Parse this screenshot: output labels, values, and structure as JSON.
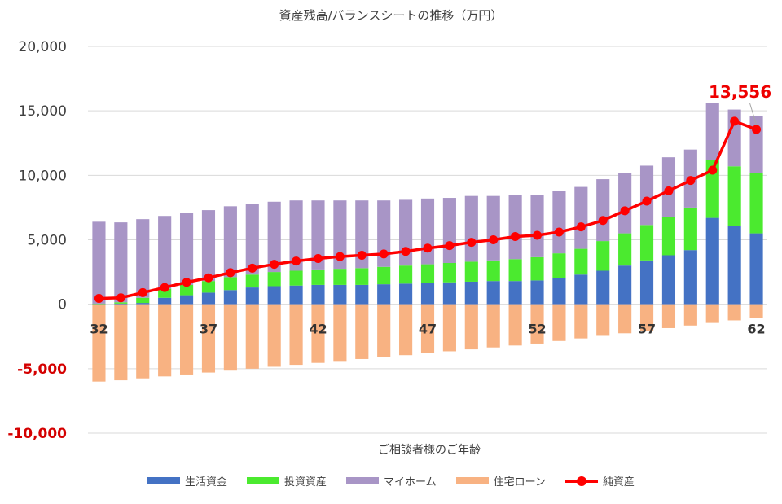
{
  "chart_data": {
    "type": "bar",
    "stacked": true,
    "title": "資産残高/バランスシートの推移（万円）",
    "xlabel": "ご相談者様のご年齢",
    "ylabel": "",
    "ylim": [
      -10000,
      20000
    ],
    "y_ticks": [
      "20,000",
      "15,000",
      "10,000",
      "5,000",
      "0",
      "-5,000",
      "-10,000"
    ],
    "y_tick_values": [
      20000,
      15000,
      10000,
      5000,
      0,
      -5000,
      -10000
    ],
    "categories": [
      32,
      33,
      34,
      35,
      36,
      37,
      38,
      39,
      40,
      41,
      42,
      43,
      44,
      45,
      46,
      47,
      48,
      49,
      50,
      51,
      52,
      53,
      54,
      55,
      56,
      57,
      58,
      59,
      60,
      61,
      62
    ],
    "x_tick_labels": [
      {
        "age": 32,
        "label": "32"
      },
      {
        "age": 37,
        "label": "37"
      },
      {
        "age": 42,
        "label": "42"
      },
      {
        "age": 47,
        "label": "47"
      },
      {
        "age": 52,
        "label": "52"
      },
      {
        "age": 57,
        "label": "57"
      },
      {
        "age": 62,
        "label": "62"
      }
    ],
    "series": [
      {
        "name": "生活資金",
        "color": "#4472c4",
        "kind": "bar",
        "values": [
          50,
          50,
          100,
          500,
          700,
          900,
          1100,
          1300,
          1400,
          1450,
          1500,
          1500,
          1500,
          1550,
          1600,
          1650,
          1700,
          1750,
          1800,
          1800,
          1850,
          2050,
          2300,
          2600,
          3000,
          3400,
          3800,
          4200,
          6700,
          6100,
          5500
        ]
      },
      {
        "name": "投資資産",
        "color": "#4bea2f",
        "kind": "bar",
        "values": [
          0,
          100,
          400,
          700,
          800,
          900,
          1000,
          1000,
          1100,
          1150,
          1200,
          1250,
          1300,
          1350,
          1400,
          1450,
          1500,
          1550,
          1600,
          1700,
          1800,
          1900,
          2000,
          2300,
          2500,
          2750,
          3000,
          3300,
          4500,
          4600,
          4700
        ]
      },
      {
        "name": "マイホーム",
        "color": "#a895c6",
        "kind": "bar",
        "values": [
          6350,
          6200,
          6100,
          5650,
          5600,
          5500,
          5500,
          5500,
          5450,
          5450,
          5350,
          5300,
          5250,
          5150,
          5100,
          5100,
          5050,
          5100,
          5000,
          4950,
          4850,
          4850,
          4800,
          4800,
          4700,
          4600,
          4600,
          4500,
          4400,
          4400,
          4400
        ]
      },
      {
        "name": "住宅ローン",
        "color": "#f8b282",
        "kind": "bar",
        "values": [
          -6000,
          -5900,
          -5750,
          -5600,
          -5450,
          -5300,
          -5150,
          -5000,
          -4850,
          -4700,
          -4550,
          -4400,
          -4250,
          -4100,
          -3950,
          -3800,
          -3650,
          -3500,
          -3350,
          -3200,
          -3050,
          -2850,
          -2650,
          -2450,
          -2250,
          -2050,
          -1850,
          -1650,
          -1450,
          -1250,
          -1050
        ]
      },
      {
        "name": "純資産",
        "color": "#ff0000",
        "kind": "line",
        "values": [
          450,
          500,
          900,
          1300,
          1700,
          2050,
          2450,
          2800,
          3100,
          3350,
          3550,
          3700,
          3800,
          3900,
          4100,
          4350,
          4550,
          4800,
          5000,
          5250,
          5350,
          5600,
          6000,
          6500,
          7250,
          8000,
          8800,
          9600,
          10400,
          14200,
          13556
        ]
      }
    ],
    "annotation": {
      "text": "13,556",
      "age": 62
    }
  }
}
